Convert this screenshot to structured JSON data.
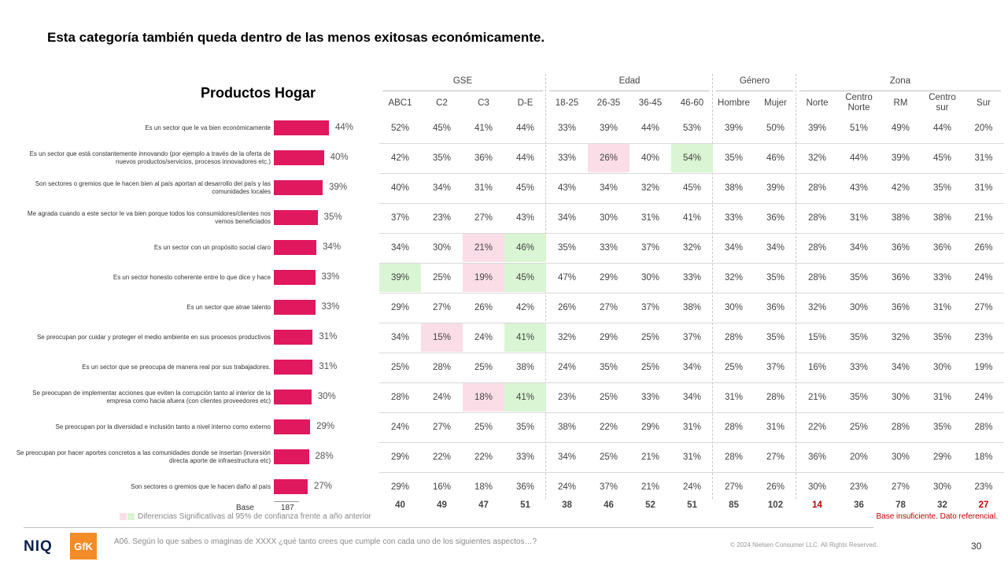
{
  "title": "Esta categoría también queda dentro de las menos exitosas económicamente.",
  "chart_data": {
    "type": "bar",
    "title": "Productos Hogar",
    "categories": [
      "Es un sector que le va bien económicamente",
      "Es un sector que está constantemente innovando (por ejemplo a través de la oferta de nuevos productos/servicios, procesos innovadores etc.)",
      "Son sectores o gremios que le hacen bien al país aportan al desarrollo del país y las comunidades locales",
      "Me agrada cuando a este sector le va bien porque todos los consumidores/clientes nos vemos beneficiados",
      "Es un sector con un propósito social claro",
      "Es un sector honesto coherente entre lo que dice y hace",
      "Es un sector que atrae talento",
      "Se preocupan por cuidar y proteger el medio ambiente en sus procesos productivos",
      "Es un sector que se preocupa de manera real por sus trabajadores.",
      "Se preocupan de implementar acciones que eviten la corrupción tanto al interior de la empresa como hacia afuera (con clientes proveedores etc)",
      "Se preocupan por la diversidad e inclusión tanto a nivel interno como externo",
      "Se preocupan por hacer aportes concretos a las comunidades donde se insertan (inversión directa aporte de infraestructura etc)",
      "Son sectores o gremios que le hacen daño al país"
    ],
    "values": [
      44,
      40,
      39,
      35,
      34,
      33,
      33,
      31,
      31,
      30,
      29,
      28,
      27
    ],
    "value_labels": [
      "44%",
      "40%",
      "39%",
      "35%",
      "34%",
      "33%",
      "33%",
      "31%",
      "31%",
      "30%",
      "29%",
      "28%",
      "27%"
    ],
    "base_label": "Base",
    "base_total": "187"
  },
  "table": {
    "groups": [
      {
        "name": "GSE",
        "cols": [
          "ABC1",
          "C2",
          "C3",
          "D-E"
        ]
      },
      {
        "name": "Edad",
        "cols": [
          "18-25",
          "26-35",
          "36-45",
          "46-60"
        ]
      },
      {
        "name": "Género",
        "cols": [
          "Hombre",
          "Mujer"
        ]
      },
      {
        "name": "Zona",
        "cols": [
          "Norte",
          "Centro Norte",
          "RM",
          "Centro sur",
          "Sur"
        ]
      }
    ],
    "rows": [
      [
        "52%",
        "45%",
        "41%",
        "44%",
        "33%",
        "39%",
        "44%",
        "53%",
        "39%",
        "50%",
        "39%",
        "51%",
        "49%",
        "44%",
        "20%"
      ],
      [
        "42%",
        "35%",
        "36%",
        "44%",
        "33%",
        "26%",
        "40%",
        "54%",
        "35%",
        "46%",
        "32%",
        "44%",
        "39%",
        "45%",
        "31%"
      ],
      [
        "40%",
        "34%",
        "31%",
        "45%",
        "43%",
        "34%",
        "32%",
        "45%",
        "38%",
        "39%",
        "28%",
        "43%",
        "42%",
        "35%",
        "31%"
      ],
      [
        "37%",
        "23%",
        "27%",
        "43%",
        "34%",
        "30%",
        "31%",
        "41%",
        "33%",
        "36%",
        "28%",
        "31%",
        "38%",
        "38%",
        "21%"
      ],
      [
        "34%",
        "30%",
        "21%",
        "46%",
        "35%",
        "33%",
        "37%",
        "32%",
        "34%",
        "34%",
        "28%",
        "34%",
        "36%",
        "36%",
        "26%"
      ],
      [
        "39%",
        "25%",
        "19%",
        "45%",
        "47%",
        "29%",
        "30%",
        "33%",
        "32%",
        "35%",
        "28%",
        "35%",
        "36%",
        "33%",
        "24%"
      ],
      [
        "29%",
        "27%",
        "26%",
        "42%",
        "26%",
        "27%",
        "37%",
        "38%",
        "30%",
        "36%",
        "32%",
        "30%",
        "36%",
        "31%",
        "27%"
      ],
      [
        "34%",
        "15%",
        "24%",
        "41%",
        "32%",
        "29%",
        "25%",
        "37%",
        "28%",
        "35%",
        "15%",
        "35%",
        "32%",
        "35%",
        "23%"
      ],
      [
        "25%",
        "28%",
        "25%",
        "38%",
        "24%",
        "35%",
        "25%",
        "34%",
        "25%",
        "37%",
        "16%",
        "33%",
        "34%",
        "30%",
        "19%"
      ],
      [
        "28%",
        "24%",
        "18%",
        "41%",
        "23%",
        "25%",
        "33%",
        "34%",
        "31%",
        "28%",
        "21%",
        "35%",
        "30%",
        "31%",
        "24%"
      ],
      [
        "24%",
        "27%",
        "25%",
        "35%",
        "38%",
        "22%",
        "29%",
        "31%",
        "28%",
        "31%",
        "22%",
        "25%",
        "28%",
        "35%",
        "28%"
      ],
      [
        "29%",
        "22%",
        "22%",
        "33%",
        "34%",
        "25%",
        "21%",
        "31%",
        "28%",
        "27%",
        "36%",
        "20%",
        "30%",
        "29%",
        "18%"
      ],
      [
        "29%",
        "16%",
        "18%",
        "36%",
        "24%",
        "37%",
        "21%",
        "24%",
        "27%",
        "26%",
        "30%",
        "23%",
        "27%",
        "30%",
        "23%"
      ]
    ],
    "highlights": {
      "green": [
        [
          1,
          7
        ],
        [
          4,
          3
        ],
        [
          5,
          0
        ],
        [
          5,
          3
        ],
        [
          7,
          3
        ],
        [
          9,
          3
        ]
      ],
      "pink": [
        [
          1,
          5
        ],
        [
          4,
          2
        ],
        [
          5,
          2
        ],
        [
          7,
          1
        ],
        [
          9,
          2
        ]
      ]
    },
    "base": [
      "40",
      "49",
      "47",
      "51",
      "38",
      "46",
      "52",
      "51",
      "85",
      "102",
      "14",
      "36",
      "78",
      "32",
      "27"
    ],
    "base_insufficient": [
      10,
      14
    ]
  },
  "colors": {
    "bar": "#e0185e",
    "pink": "#fbdde7",
    "green": "#d9f5d3",
    "red": "#c00000"
  },
  "legend": "Diferencias Significativas al 95% de confianza frente a año anterior",
  "note": "Base insuficiente. Dato referencial.",
  "question": "A06. Según lo que sabes o imaginas de XXXX ¿qué tanto crees que cumple con cada uno de los siguientes aspectos…?",
  "copyright": "© 2024 Nielsen Consumer LLC. All Rights Reserved.",
  "page": "30",
  "logos": {
    "niq": "NIQ",
    "gfk": "GfK"
  }
}
